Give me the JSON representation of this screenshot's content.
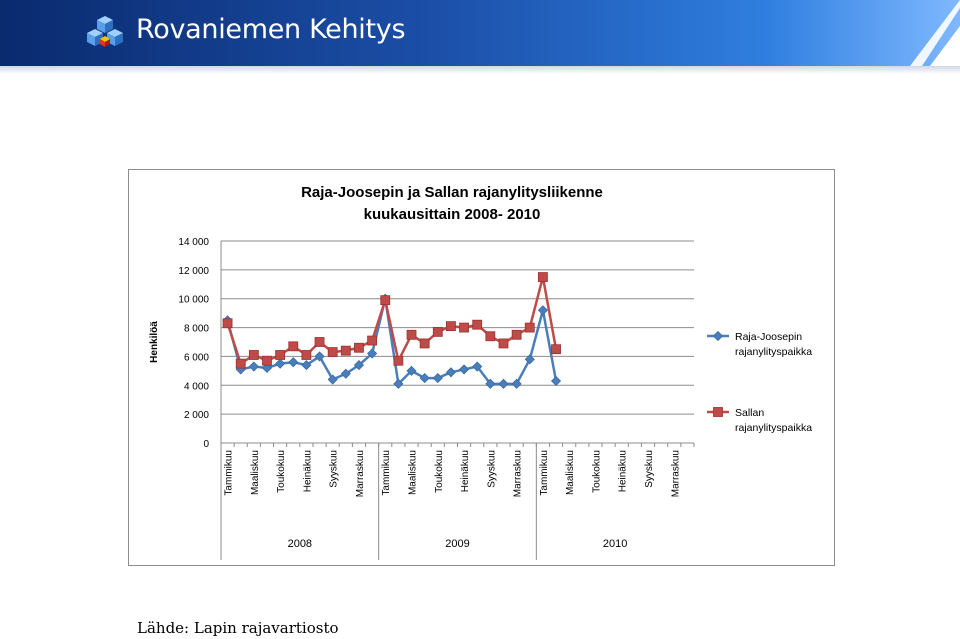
{
  "header": {
    "brand": "Rovaniemen Kehitys",
    "logo_icon": "cube-cluster-logo",
    "colors": {
      "bar_dark": "#0a2a6e",
      "bar_light": "#7fb8ff"
    }
  },
  "source": "Lähde: Lapin rajavartiosto",
  "chart_data": {
    "type": "line",
    "title_lines": [
      "Raja-Joosepin ja Sallan rajanylitysliikenne",
      "kuukausittain 2008- 2010"
    ],
    "ylabel": "Henkilöä",
    "ylim": [
      0,
      14000
    ],
    "yticks": [
      0,
      2000,
      4000,
      6000,
      8000,
      10000,
      12000,
      14000
    ],
    "ytick_labels": [
      "0",
      "2 000",
      "4 000",
      "6 000",
      "8 000",
      "10 000",
      "12 000",
      "14 000"
    ],
    "grid": true,
    "legend_position": "right",
    "month_labels": [
      "Tammikuu",
      "Maaliskuu",
      "Toukokuu",
      "Heinäkuu",
      "Syyskuu",
      "Marraskuu"
    ],
    "years": [
      "2008",
      "2009",
      "2010"
    ],
    "months_per_year": 12,
    "series": [
      {
        "name": "Raja-Joosepin rajanylityspaikka",
        "legend_lines": [
          "Raja-Joosepin",
          "rajanylityspaikka"
        ],
        "color": "#4a7ebb",
        "marker": "diamond",
        "values": [
          8500,
          5100,
          5300,
          5200,
          5500,
          5600,
          5400,
          6000,
          4400,
          4800,
          5400,
          6200,
          10000,
          4100,
          5000,
          4500,
          4500,
          4900,
          5100,
          5300,
          4100,
          4100,
          4100,
          5800,
          9200,
          4300
        ]
      },
      {
        "name": "Sallan rajanylityspaikka",
        "legend_lines": [
          "Sallan",
          "rajanylityspaikka"
        ],
        "color": "#be4b48",
        "marker": "square",
        "values": [
          8300,
          5500,
          6100,
          5700,
          6100,
          6700,
          6100,
          7000,
          6300,
          6400,
          6600,
          7100,
          9900,
          5700,
          7500,
          6900,
          7700,
          8100,
          8000,
          8200,
          7400,
          6900,
          7500,
          8000,
          11500,
          6500
        ]
      }
    ]
  }
}
